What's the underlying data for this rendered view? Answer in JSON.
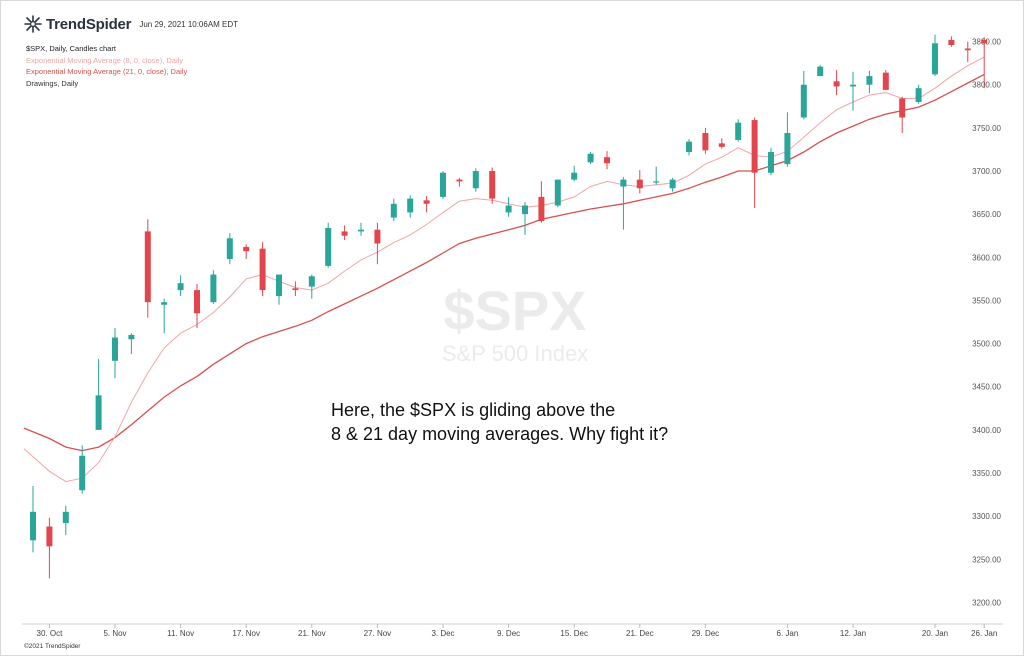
{
  "header": {
    "brand": "TrendSpider",
    "date": "Jun 29, 2021 10:06AM EDT"
  },
  "legend": [
    "$SPX, Daily, Candles chart",
    "Exponential Moving Average (8, 0, close), Daily",
    "Exponential Moving Average (21, 0, close), Daily",
    "Drawings, Daily"
  ],
  "watermark": {
    "title": "$SPX",
    "subtitle": "S&P 500 Index"
  },
  "annotation": {
    "line1": "Here, the $SPX is gliding above the",
    "line2": "8 & 21 day moving averages. Why fight it?"
  },
  "footer": {
    "copyright": "©2021 TrendSpider"
  },
  "colors": {
    "up": "#2aa59a",
    "down": "#e2454c",
    "ema8": "#f4a3a3",
    "ema21": "#d6504f"
  },
  "chart_data": {
    "type": "candlestick",
    "ylim": [
      3175,
      3875
    ],
    "yticks": [
      3200,
      3250,
      3300,
      3350,
      3400,
      3450,
      3500,
      3550,
      3600,
      3650,
      3700,
      3750,
      3800,
      3850
    ],
    "xticks": [
      {
        "label": "30. Oct",
        "index": 1
      },
      {
        "label": "5. Nov",
        "index": 5
      },
      {
        "label": "11. Nov",
        "index": 9
      },
      {
        "label": "17. Nov",
        "index": 13
      },
      {
        "label": "21. Nov",
        "index": 17
      },
      {
        "label": "27. Nov",
        "index": 21
      },
      {
        "label": "3. Dec",
        "index": 25
      },
      {
        "label": "9. Dec",
        "index": 29
      },
      {
        "label": "15. Dec",
        "index": 33
      },
      {
        "label": "21. Dec",
        "index": 37
      },
      {
        "label": "29. Dec",
        "index": 41
      },
      {
        "label": "6. Jan",
        "index": 46
      },
      {
        "label": "12. Jan",
        "index": 50
      },
      {
        "label": "20. Jan",
        "index": 55
      },
      {
        "label": "26. Jan",
        "index": 58
      }
    ],
    "candles": [
      {
        "o": 3272,
        "h": 3335,
        "l": 3258,
        "c": 3305
      },
      {
        "o": 3288,
        "h": 3298,
        "l": 3228,
        "c": 3265
      },
      {
        "o": 3292,
        "h": 3312,
        "l": 3278,
        "c": 3305
      },
      {
        "o": 3330,
        "h": 3382,
        "l": 3326,
        "c": 3370
      },
      {
        "o": 3400,
        "h": 3482,
        "l": 3400,
        "c": 3440
      },
      {
        "o": 3480,
        "h": 3518,
        "l": 3460,
        "c": 3507
      },
      {
        "o": 3505,
        "h": 3512,
        "l": 3488,
        "c": 3510
      },
      {
        "o": 3630,
        "h": 3644,
        "l": 3530,
        "c": 3548
      },
      {
        "o": 3545,
        "h": 3552,
        "l": 3512,
        "c": 3548
      },
      {
        "o": 3562,
        "h": 3579,
        "l": 3555,
        "c": 3570
      },
      {
        "o": 3562,
        "h": 3569,
        "l": 3518,
        "c": 3535
      },
      {
        "o": 3548,
        "h": 3585,
        "l": 3546,
        "c": 3580
      },
      {
        "o": 3598,
        "h": 3628,
        "l": 3592,
        "c": 3622
      },
      {
        "o": 3612,
        "h": 3615,
        "l": 3598,
        "c": 3607
      },
      {
        "o": 3610,
        "h": 3618,
        "l": 3555,
        "c": 3562
      },
      {
        "o": 3555,
        "h": 3580,
        "l": 3545,
        "c": 3580
      },
      {
        "o": 3564,
        "h": 3572,
        "l": 3555,
        "c": 3562
      },
      {
        "o": 3566,
        "h": 3580,
        "l": 3552,
        "c": 3578
      },
      {
        "o": 3590,
        "h": 3640,
        "l": 3588,
        "c": 3634
      },
      {
        "o": 3630,
        "h": 3637,
        "l": 3620,
        "c": 3625
      },
      {
        "o": 3630,
        "h": 3640,
        "l": 3625,
        "c": 3632
      },
      {
        "o": 3632,
        "h": 3640,
        "l": 3592,
        "c": 3616
      },
      {
        "o": 3646,
        "h": 3668,
        "l": 3642,
        "c": 3662
      },
      {
        "o": 3652,
        "h": 3672,
        "l": 3646,
        "c": 3668
      },
      {
        "o": 3666,
        "h": 3671,
        "l": 3652,
        "c": 3662
      },
      {
        "o": 3670,
        "h": 3700,
        "l": 3668,
        "c": 3698
      },
      {
        "o": 3690,
        "h": 3692,
        "l": 3682,
        "c": 3688
      },
      {
        "o": 3680,
        "h": 3703,
        "l": 3676,
        "c": 3700
      },
      {
        "o": 3700,
        "h": 3704,
        "l": 3662,
        "c": 3668
      },
      {
        "o": 3652,
        "h": 3670,
        "l": 3647,
        "c": 3660
      },
      {
        "o": 3650,
        "h": 3664,
        "l": 3626,
        "c": 3660
      },
      {
        "o": 3670,
        "h": 3688,
        "l": 3640,
        "c": 3642
      },
      {
        "o": 3660,
        "h": 3690,
        "l": 3658,
        "c": 3690
      },
      {
        "o": 3690,
        "h": 3706,
        "l": 3688,
        "c": 3698
      },
      {
        "o": 3710,
        "h": 3722,
        "l": 3708,
        "c": 3720
      },
      {
        "o": 3716,
        "h": 3723,
        "l": 3702,
        "c": 3709
      },
      {
        "o": 3682,
        "h": 3693,
        "l": 3632,
        "c": 3690
      },
      {
        "o": 3690,
        "h": 3701,
        "l": 3674,
        "c": 3680
      },
      {
        "o": 3687,
        "h": 3705,
        "l": 3684,
        "c": 3688
      },
      {
        "o": 3680,
        "h": 3692,
        "l": 3676,
        "c": 3690
      },
      {
        "o": 3722,
        "h": 3737,
        "l": 3718,
        "c": 3734
      },
      {
        "o": 3744,
        "h": 3750,
        "l": 3720,
        "c": 3724
      },
      {
        "o": 3732,
        "h": 3738,
        "l": 3726,
        "c": 3728
      },
      {
        "o": 3736,
        "h": 3760,
        "l": 3734,
        "c": 3756
      },
      {
        "o": 3759,
        "h": 3762,
        "l": 3657,
        "c": 3698
      },
      {
        "o": 3698,
        "h": 3727,
        "l": 3695,
        "c": 3722
      },
      {
        "o": 3708,
        "h": 3768,
        "l": 3705,
        "c": 3744
      },
      {
        "o": 3762,
        "h": 3816,
        "l": 3760,
        "c": 3800
      },
      {
        "o": 3810,
        "h": 3823,
        "l": 3810,
        "c": 3821
      },
      {
        "o": 3804,
        "h": 3817,
        "l": 3788,
        "c": 3798
      },
      {
        "o": 3798,
        "h": 3815,
        "l": 3770,
        "c": 3800
      },
      {
        "o": 3800,
        "h": 3816,
        "l": 3790,
        "c": 3810
      },
      {
        "o": 3814,
        "h": 3817,
        "l": 3794,
        "c": 3794
      },
      {
        "o": 3784,
        "h": 3786,
        "l": 3744,
        "c": 3762
      },
      {
        "o": 3780,
        "h": 3800,
        "l": 3778,
        "c": 3796
      },
      {
        "o": 3812,
        "h": 3858,
        "l": 3810,
        "c": 3848
      },
      {
        "o": 3852,
        "h": 3856,
        "l": 3844,
        "c": 3846
      },
      {
        "o": 3842,
        "h": 3850,
        "l": 3826,
        "c": 3840
      },
      {
        "o": 3852,
        "h": 3855,
        "l": 3796,
        "c": 3848
      }
    ],
    "ema8": [
      3378,
      3352,
      3340,
      3344,
      3362,
      3392,
      3432,
      3466,
      3495,
      3512,
      3522,
      3536,
      3554,
      3575,
      3580,
      3572,
      3565,
      3562,
      3570,
      3584,
      3597,
      3606,
      3617,
      3626,
      3638,
      3652,
      3665,
      3668,
      3666,
      3662,
      3658,
      3660,
      3664,
      3670,
      3682,
      3688,
      3684,
      3682,
      3684,
      3686,
      3695,
      3708,
      3716,
      3727,
      3718,
      3716,
      3723,
      3739,
      3756,
      3771,
      3780,
      3788,
      3791,
      3784,
      3784,
      3796,
      3810,
      3822,
      3832
    ],
    "ema21": [
      3402,
      3390,
      3380,
      3376,
      3380,
      3391,
      3406,
      3422,
      3438,
      3451,
      3462,
      3476,
      3488,
      3500,
      3508,
      3514,
      3520,
      3527,
      3537,
      3546,
      3555,
      3564,
      3574,
      3584,
      3594,
      3605,
      3616,
      3622,
      3627,
      3632,
      3637,
      3644,
      3648,
      3652,
      3656,
      3659,
      3662,
      3666,
      3670,
      3674,
      3680,
      3687,
      3693,
      3700,
      3700,
      3706,
      3712,
      3722,
      3734,
      3744,
      3752,
      3760,
      3766,
      3770,
      3774,
      3782,
      3792,
      3802,
      3812
    ]
  }
}
